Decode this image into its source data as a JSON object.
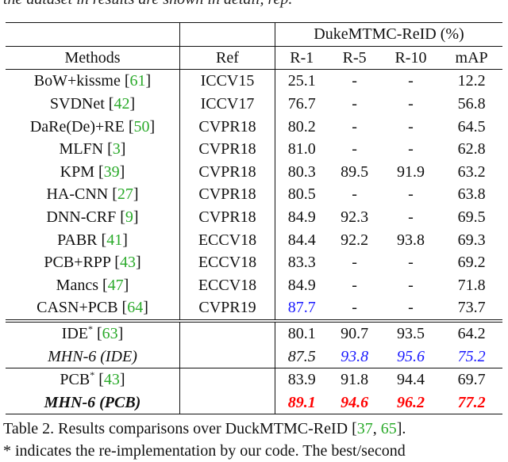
{
  "top_cut_text": "the dataset in results are shown in detail, rep.",
  "table": {
    "dataset_header": "DukeMTMC-ReID (%)",
    "columns": [
      "Methods",
      "Ref",
      "R-1",
      "R-5",
      "R-10",
      "mAP"
    ],
    "rows": [
      {
        "method": "BoW+kissme",
        "cite": "61",
        "ref": "ICCV15",
        "r1": "25.1",
        "r5": "-",
        "r10": "-",
        "map": "12.2"
      },
      {
        "method": "SVDNet",
        "cite": "42",
        "ref": "ICCV17",
        "r1": "76.7",
        "r5": "-",
        "r10": "-",
        "map": "56.8"
      },
      {
        "method": "DaRe(De)+RE",
        "cite": "50",
        "ref": "CVPR18",
        "r1": "80.2",
        "r5": "-",
        "r10": "-",
        "map": "64.5"
      },
      {
        "method": "MLFN",
        "cite": "3",
        "ref": "CVPR18",
        "r1": "81.0",
        "r5": "-",
        "r10": "-",
        "map": "62.8"
      },
      {
        "method": "KPM",
        "cite": "39",
        "ref": "CVPR18",
        "r1": "80.3",
        "r5": "89.5",
        "r10": "91.9",
        "map": "63.2"
      },
      {
        "method": "HA-CNN",
        "cite": "27",
        "ref": "CVPR18",
        "r1": "80.5",
        "r5": "-",
        "r10": "-",
        "map": "63.8"
      },
      {
        "method": "DNN-CRF",
        "cite": "9",
        "ref": "CVPR18",
        "r1": "84.9",
        "r5": "92.3",
        "r10": "-",
        "map": "69.5"
      },
      {
        "method": "PABR",
        "cite": "41",
        "ref": "ECCV18",
        "r1": "84.4",
        "r5": "92.2",
        "r10": "93.8",
        "map": "69.3"
      },
      {
        "method": "PCB+RPP",
        "cite": "43",
        "ref": "ECCV18",
        "r1": "83.3",
        "r5": "-",
        "r10": "-",
        "map": "69.2"
      },
      {
        "method": "Mancs",
        "cite": "47",
        "ref": "ECCV18",
        "r1": "84.9",
        "r5": "-",
        "r10": "-",
        "map": "71.8"
      },
      {
        "method": "CASN+PCB",
        "cite": "64",
        "ref": "CVPR19",
        "r1": "87.7",
        "r5": "-",
        "r10": "-",
        "map": "73.7"
      }
    ],
    "ide_row": {
      "method": "IDE",
      "star": "*",
      "cite": "63",
      "ref": "",
      "r1": "80.1",
      "r5": "90.7",
      "r10": "93.5",
      "map": "64.2"
    },
    "mhn_ide_row": {
      "method": "MHN-6 (IDE)",
      "ref": "",
      "r1": "87.5",
      "r5": "93.8",
      "r10": "95.6",
      "map": "75.2"
    },
    "pcb_row": {
      "method": "PCB",
      "star": "*",
      "cite": "43",
      "ref": "",
      "r1": "83.9",
      "r5": "91.8",
      "r10": "94.4",
      "map": "69.7"
    },
    "mhn_pcb_row": {
      "method": "MHN-6 (PCB)",
      "ref": "",
      "r1": "89.1",
      "r5": "94.6",
      "r10": "96.2",
      "map": "77.2"
    }
  },
  "caption": {
    "prefix": "Table 2. Results comparisons over DuckMTMC-ReID [",
    "cite1": "37",
    "sep": ", ",
    "cite2": "65",
    "suffix": "].",
    "line2": "* indicates the re-implementation by our code. The best/second"
  },
  "colors": {
    "best": "#ff0000",
    "second": "#1a1aff",
    "citation": "#2aaa2a"
  }
}
